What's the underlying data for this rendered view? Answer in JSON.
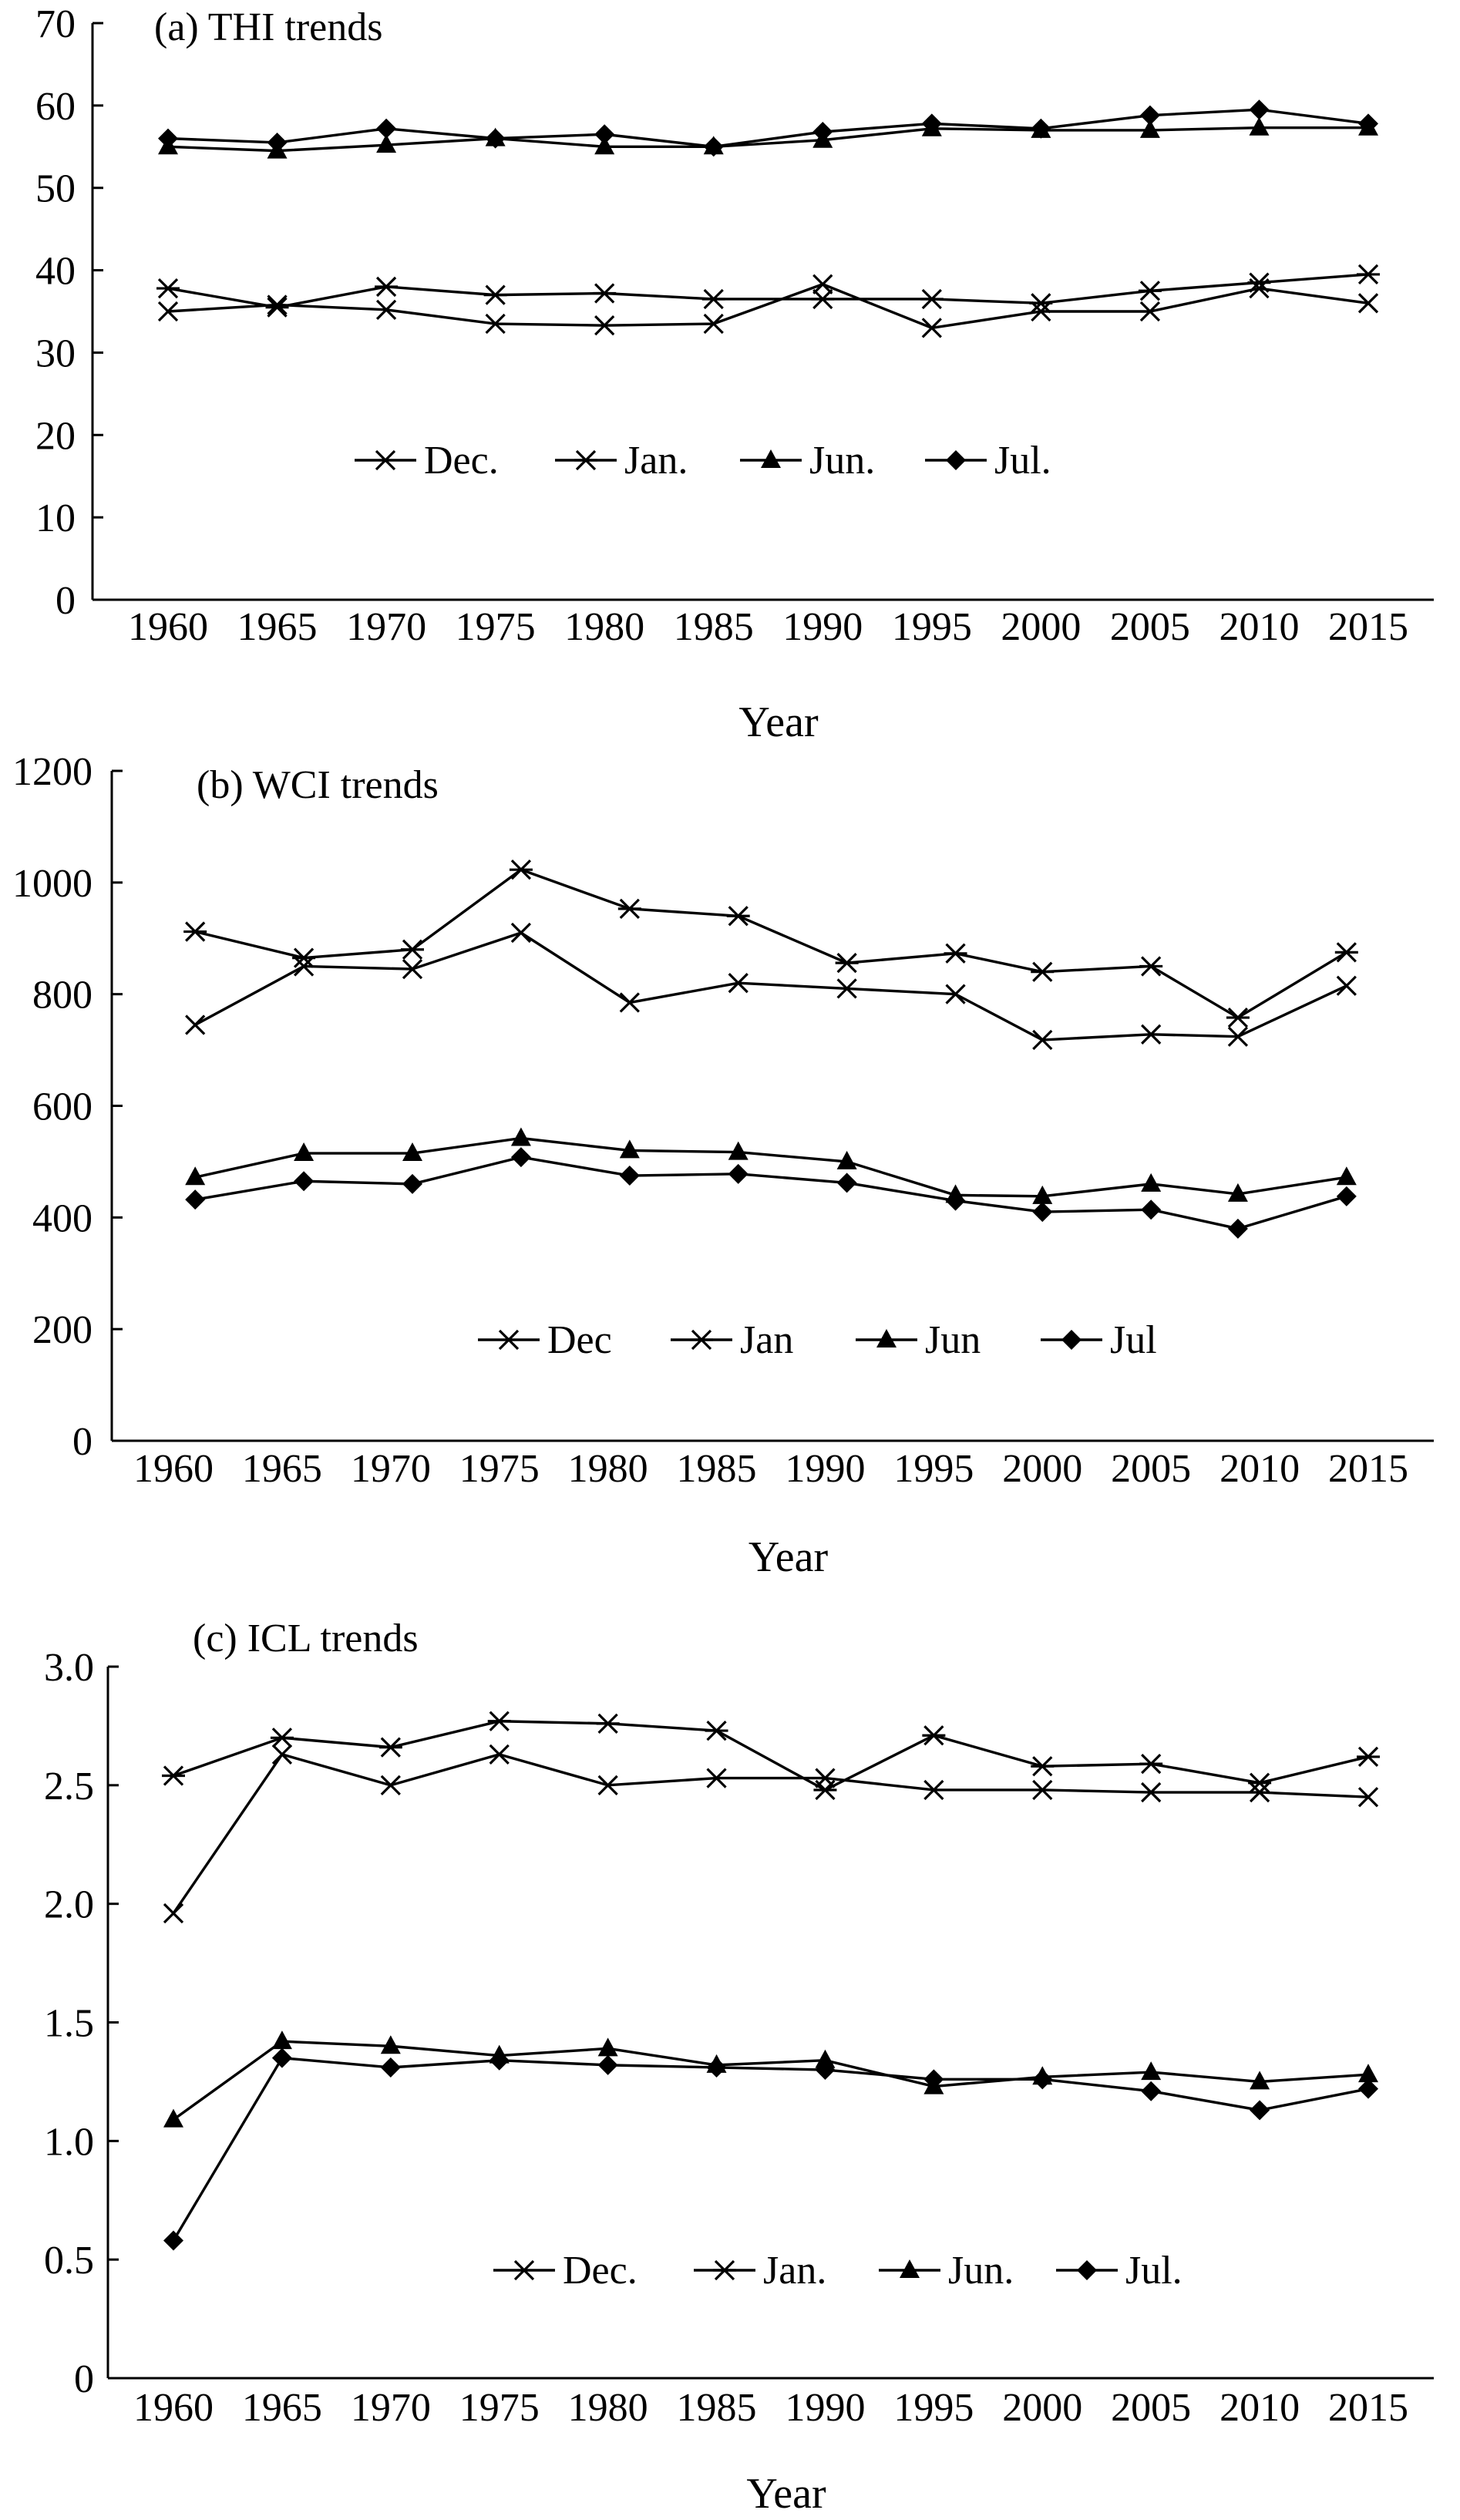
{
  "chart_data": [
    {
      "type": "line",
      "title": "(a) THI trends",
      "xlabel": "Year",
      "ylabel": "",
      "ylim": [
        0,
        70
      ],
      "yticks": [
        "0",
        "10",
        "20",
        "30",
        "40",
        "50",
        "60",
        "70"
      ],
      "categories": [
        "1960",
        "1965",
        "1970",
        "1975",
        "1980",
        "1985",
        "1990",
        "1995",
        "2000",
        "2005",
        "2010",
        "2015"
      ],
      "legend_position": "lower-center",
      "series": [
        {
          "name": "Dec.",
          "marker": "x",
          "values": [
            35.0,
            35.8,
            35.2,
            33.5,
            33.3,
            33.5,
            38.3,
            33.0,
            35.0,
            35.0,
            37.8,
            36.0
          ]
        },
        {
          "name": "Jan.",
          "marker": "asterisk",
          "values": [
            37.8,
            35.5,
            38.0,
            37.0,
            37.2,
            36.5,
            36.5,
            36.5,
            36.0,
            37.5,
            38.5,
            39.5
          ]
        },
        {
          "name": "Jun.",
          "marker": "triangle",
          "values": [
            55.0,
            54.5,
            55.2,
            56.0,
            55.0,
            55.0,
            55.8,
            57.2,
            57.0,
            57.0,
            57.3,
            57.3
          ]
        },
        {
          "name": "Jul.",
          "marker": "diamond",
          "values": [
            56.0,
            55.5,
            57.2,
            56.0,
            56.5,
            55.0,
            56.8,
            57.8,
            57.2,
            58.8,
            59.5,
            57.8
          ]
        }
      ]
    },
    {
      "type": "line",
      "title": "(b) WCI trends",
      "xlabel": "Year",
      "ylabel": "",
      "ylim": [
        0,
        1200
      ],
      "yticks": [
        "0",
        "200",
        "400",
        "600",
        "800",
        "1000",
        "1200"
      ],
      "categories": [
        "1960",
        "1965",
        "1970",
        "1975",
        "1980",
        "1985",
        "1990",
        "1995",
        "2000",
        "2005",
        "2010",
        "2015"
      ],
      "legend_position": "lower-center",
      "series": [
        {
          "name": "Dec",
          "marker": "x",
          "x": [
            1961,
            1966,
            1971,
            1976,
            1981,
            1986,
            1991,
            1996,
            2000,
            2005,
            2009,
            2014
          ],
          "values": [
            745,
            850,
            845,
            910,
            785,
            820,
            810,
            800,
            718,
            728,
            724,
            815
          ]
        },
        {
          "name": "Jan",
          "marker": "asterisk",
          "x": [
            1961,
            1966,
            1971,
            1976,
            1981,
            1986,
            1991,
            1996,
            2000,
            2005,
            2009,
            2014
          ],
          "values": [
            912,
            865,
            880,
            1023,
            953,
            940,
            856,
            873,
            840,
            850,
            758,
            875
          ]
        },
        {
          "name": "Jun",
          "marker": "triangle",
          "x": [
            1961,
            1966,
            1971,
            1976,
            1981,
            1986,
            1991,
            1996,
            2000,
            2005,
            2009,
            2014
          ],
          "values": [
            472,
            515,
            515,
            542,
            520,
            517,
            500,
            440,
            438,
            460,
            442,
            472
          ]
        },
        {
          "name": "Jul",
          "marker": "diamond",
          "x": [
            1961,
            1966,
            1971,
            1976,
            1981,
            1986,
            1991,
            1996,
            2000,
            2005,
            2009,
            2014
          ],
          "values": [
            432,
            465,
            460,
            508,
            475,
            478,
            462,
            430,
            410,
            414,
            380,
            438
          ]
        }
      ]
    },
    {
      "type": "line",
      "title": "(c) ICL trends",
      "xlabel": "Year",
      "ylabel": "",
      "ylim": [
        0,
        3.0
      ],
      "yticks": [
        "0",
        "0.5",
        "1.0",
        "1.5",
        "2.0",
        "2.5",
        "3.0"
      ],
      "categories": [
        "1960",
        "1965",
        "1970",
        "1975",
        "1980",
        "1985",
        "1990",
        "1995",
        "2000",
        "2005",
        "2010",
        "2015"
      ],
      "legend_position": "lower-center",
      "series": [
        {
          "name": "Dec.",
          "marker": "x",
          "x": [
            1960,
            1965,
            1970,
            1975,
            1980,
            1985,
            1990,
            1995,
            2000,
            2005,
            2010,
            2015
          ],
          "values": [
            1.96,
            2.63,
            2.5,
            2.63,
            2.5,
            2.53,
            2.53,
            2.48,
            2.48,
            2.47,
            2.47,
            2.45
          ]
        },
        {
          "name": "Jan.",
          "marker": "asterisk",
          "x": [
            1960,
            1965,
            1970,
            1975,
            1980,
            1985,
            1990,
            1995,
            2000,
            2005,
            2010,
            2015
          ],
          "values": [
            2.54,
            2.7,
            2.66,
            2.77,
            2.76,
            2.73,
            2.48,
            2.71,
            2.58,
            2.59,
            2.51,
            2.62
          ]
        },
        {
          "name": "Jun.",
          "marker": "triangle",
          "x": [
            1960,
            1965,
            1970,
            1975,
            1980,
            1985,
            1990,
            1995,
            2000,
            2005,
            2010,
            2015
          ],
          "values": [
            1.09,
            1.42,
            1.4,
            1.36,
            1.39,
            1.32,
            1.34,
            1.23,
            1.27,
            1.29,
            1.25,
            1.28
          ]
        },
        {
          "name": "Jul.",
          "marker": "diamond",
          "x": [
            1960,
            1965,
            1970,
            1975,
            1980,
            1985,
            1990,
            1995,
            2000,
            2005,
            2010,
            2015
          ],
          "values": [
            0.58,
            1.35,
            1.31,
            1.34,
            1.32,
            1.31,
            1.3,
            1.26,
            1.26,
            1.21,
            1.13,
            1.22
          ]
        }
      ]
    }
  ]
}
